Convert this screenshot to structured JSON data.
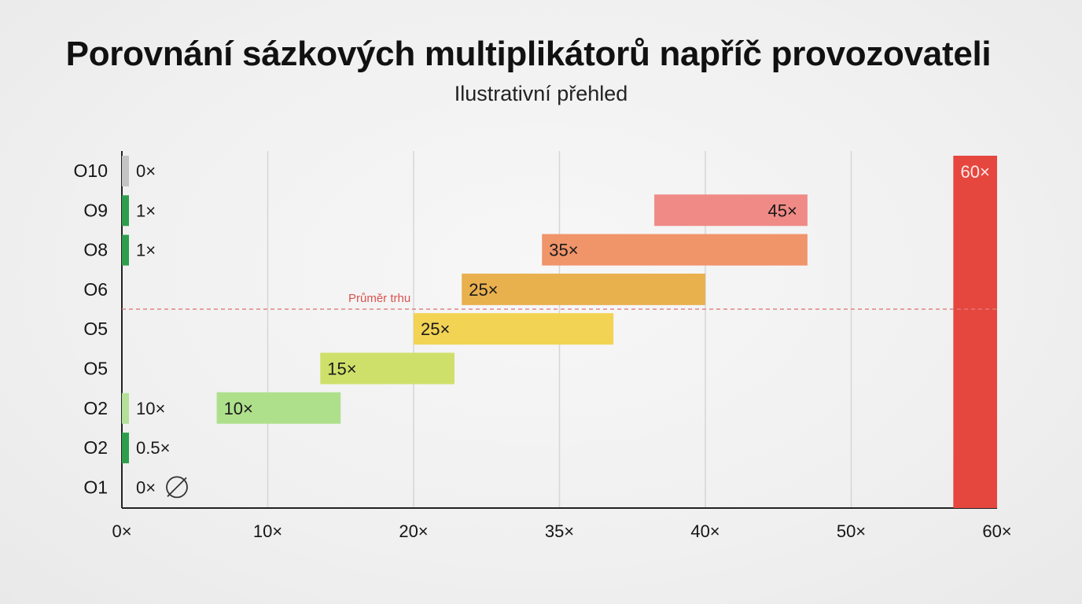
{
  "title": "Porovnání sázkových multiplikátorů napříč provozovateli",
  "subtitle": "Ilustrativní přehled",
  "chart_data": {
    "type": "bar",
    "orientation": "horizontal",
    "title": "Porovnání sázkových multiplikátorů napříč provozovateli",
    "subtitle": "Ilustrativní přehled",
    "x_ticks": [
      "0×",
      "10×",
      "20×",
      "35×",
      "40×",
      "50×",
      "60×"
    ],
    "xlim": [
      0,
      60
    ],
    "grid": "vertical",
    "reference_line": {
      "label": "Průměr trhu",
      "between_rows": [
        "O6",
        "O5"
      ]
    },
    "rows": [
      {
        "label": "O10",
        "stub_value": "0×",
        "stub_color": "#c4c4c4"
      },
      {
        "label": "O9",
        "stub_value": "1×",
        "stub_color": "#2e9e4e",
        "bar": {
          "start": 36.5,
          "end": 47,
          "value": "45×",
          "label_align": "right",
          "color": "#f08a86"
        }
      },
      {
        "label": "O8",
        "stub_value": "1×",
        "stub_color": "#2e9e4e",
        "bar": {
          "start": 28.8,
          "end": 47,
          "value": "35×",
          "label_align": "left",
          "color": "#f0946a"
        }
      },
      {
        "label": "O6",
        "bar": {
          "start": 23.3,
          "end": 40,
          "value": "25×",
          "label_align": "left",
          "color": "#e9b04e"
        }
      },
      {
        "label": "O5",
        "bar": {
          "start": 20,
          "end": 33.7,
          "value": "25×",
          "label_align": "left",
          "color": "#f2d354"
        }
      },
      {
        "label": "O5",
        "bar": {
          "start": 13.6,
          "end": 22.8,
          "value": "15×",
          "label_align": "left",
          "color": "#cfe06a"
        }
      },
      {
        "label": "O2",
        "stub_value": "10×",
        "stub_color": "#b4e09a",
        "bar": {
          "start": 6.5,
          "end": 15,
          "value": "10×",
          "label_align": "left",
          "color": "#aee08c"
        }
      },
      {
        "label": "O2",
        "stub_value": "0.5×",
        "stub_color": "#2e9e4e"
      },
      {
        "label": "O1",
        "stub_value": "0×",
        "stub_icon": "no-bonus-icon"
      }
    ],
    "highlight_bar": {
      "start": 57,
      "end": 60,
      "value": "60×",
      "color": "#e5473f"
    }
  }
}
